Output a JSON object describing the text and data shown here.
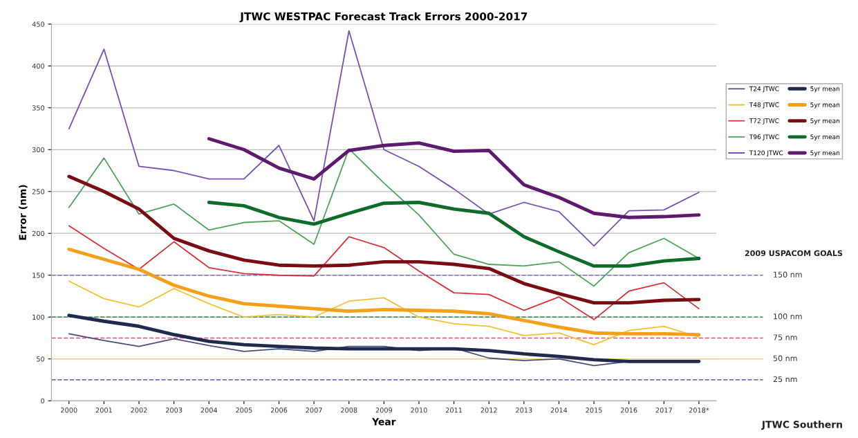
{
  "chart_data": {
    "type": "line",
    "title": "JTWC WESTPAC Forecast Track Errors 2000-2017",
    "xlabel": "Year",
    "ylabel": "Error (nm)",
    "categories": [
      "2000",
      "2001",
      "2002",
      "2003",
      "2004",
      "2005",
      "2006",
      "2007",
      "2008",
      "2009",
      "2010",
      "2011",
      "2012",
      "2013",
      "2014",
      "2015",
      "2016",
      "2017",
      "2018*"
    ],
    "ylim": [
      0,
      450
    ],
    "yticks": [
      0,
      50,
      100,
      150,
      200,
      250,
      300,
      350,
      400,
      450
    ],
    "grid": "y",
    "legend": "top right",
    "marker": "none",
    "line_style": "solid",
    "series": [
      {
        "name": "T24 JTWC",
        "color": "#4a4e7a",
        "values": [
          80,
          72,
          65,
          74,
          66,
          59,
          62,
          59,
          65,
          65,
          60,
          63,
          51,
          48,
          50,
          42,
          47,
          48,
          47
        ]
      },
      {
        "name": "5yr mean",
        "color": "#1f2a4e",
        "values": [
          102,
          95,
          89,
          79,
          71,
          67,
          65,
          63,
          62,
          62,
          62,
          62,
          60,
          56,
          53,
          49,
          47,
          47,
          47
        ]
      },
      {
        "name": "T48 JTWC",
        "color": "#f2c233",
        "values": [
          143,
          122,
          112,
          134,
          116,
          100,
          103,
          100,
          119,
          123,
          100,
          92,
          89,
          78,
          81,
          67,
          84,
          89,
          76
        ]
      },
      {
        "name": "5yr mean",
        "color": "#f5a01a",
        "values": [
          181,
          169,
          157,
          138,
          125,
          116,
          113,
          110,
          107,
          109,
          108,
          107,
          104,
          96,
          88,
          81,
          80,
          80,
          79
        ]
      },
      {
        "name": "T72 JTWC",
        "color": "#d9303a",
        "values": [
          209,
          182,
          157,
          190,
          159,
          152,
          150,
          149,
          196,
          183,
          155,
          129,
          127,
          108,
          124,
          97,
          131,
          141,
          110
        ]
      },
      {
        "name": "5yr mean",
        "color": "#7a0d14",
        "values": [
          268,
          250,
          229,
          194,
          179,
          168,
          162,
          161,
          162,
          166,
          166,
          163,
          158,
          140,
          128,
          117,
          117,
          120,
          121
        ]
      },
      {
        "name": "T96 JTWC",
        "color": "#4fa35a",
        "values": [
          231,
          290,
          223,
          235,
          204,
          213,
          215,
          187,
          301,
          260,
          222,
          175,
          163,
          161,
          166,
          137,
          177,
          194,
          170
        ]
      },
      {
        "name": "5yr mean",
        "color": "#0f6b2a",
        "values": [
          null,
          null,
          null,
          null,
          237,
          233,
          219,
          211,
          224,
          236,
          237,
          229,
          224,
          196,
          178,
          161,
          161,
          167,
          170
        ]
      },
      {
        "name": "T120 JTWC",
        "color": "#7a4fb5",
        "values": [
          325,
          420,
          280,
          275,
          265,
          265,
          305,
          215,
          442,
          300,
          280,
          253,
          223,
          237,
          226,
          185,
          227,
          228,
          249
        ]
      },
      {
        "name": "5yr mean",
        "color": "#5e1a6e",
        "values": [
          null,
          null,
          null,
          null,
          313,
          300,
          278,
          265,
          299,
          305,
          308,
          298,
          299,
          258,
          243,
          224,
          219,
          220,
          222
        ]
      }
    ],
    "ref_lines": [
      {
        "axis": "y",
        "value": 150,
        "label": "150 nm",
        "color": "#7d6fc0",
        "line_style": "dashed"
      },
      {
        "axis": "y",
        "value": 100,
        "label": "100 nm",
        "color": "#2f8a4a",
        "line_style": "dashed"
      },
      {
        "axis": "y",
        "value": 75,
        "label": "75 nm",
        "color": "#d0567a",
        "line_style": "dashed"
      },
      {
        "axis": "y",
        "value": 50,
        "label": "50 nm",
        "color": "#f3d27a",
        "line_style": "solid"
      },
      {
        "axis": "y",
        "value": 25,
        "label": "25 nm",
        "color": "#6a74b0",
        "line_style": "dashed"
      }
    ],
    "annotations": [
      "2009 USPACOM GOALS",
      "JTWC Southern"
    ]
  }
}
